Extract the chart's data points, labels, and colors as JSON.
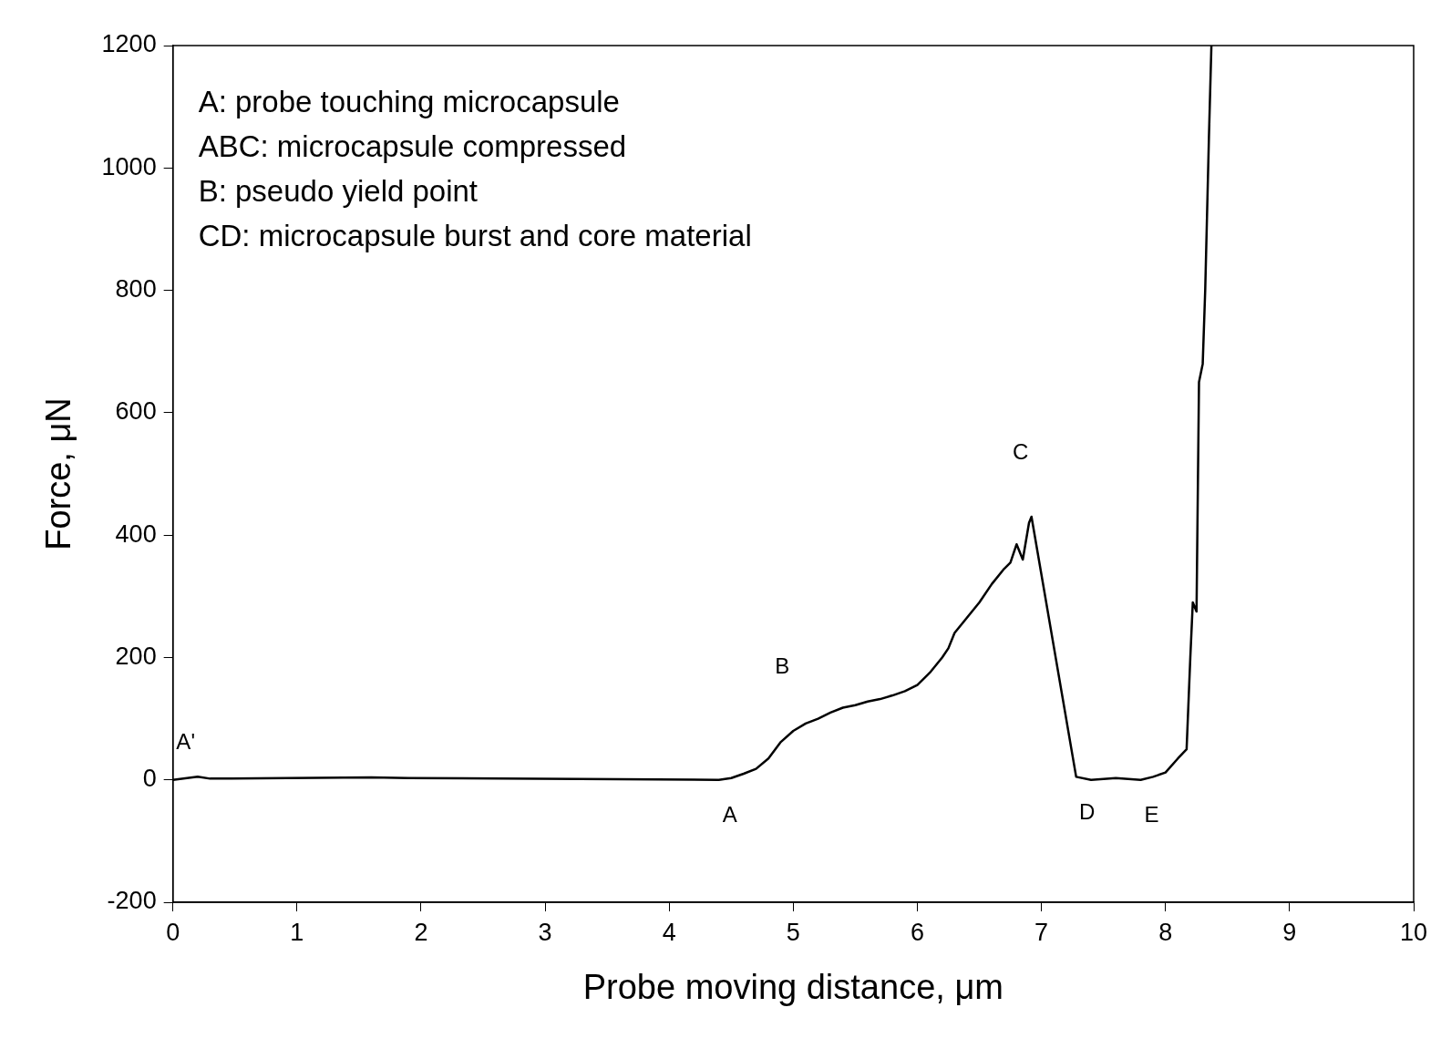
{
  "chart_data": {
    "type": "line",
    "xlabel": "Probe moving distance, μm",
    "ylabel": "Force, μN",
    "xlim": [
      0,
      10
    ],
    "xticks": [
      0,
      1,
      2,
      3,
      4,
      5,
      6,
      7,
      8,
      9,
      10
    ],
    "ylim": [
      -200,
      1200
    ],
    "yticks": [
      -200,
      0,
      200,
      400,
      600,
      800,
      1000,
      1200
    ],
    "grid": false,
    "legend": false,
    "marker": "none",
    "line_style": "solid",
    "series": [
      {
        "color": "#000000",
        "x": [
          0,
          0.2,
          0.3,
          1.6,
          1.9,
          4.4,
          4.5,
          4.6,
          4.7,
          4.8,
          4.9,
          5.0,
          5.1,
          5.2,
          5.3,
          5.4,
          5.5,
          5.6,
          5.7,
          5.8,
          5.9,
          6.0,
          6.1,
          6.2,
          6.25,
          6.3,
          6.4,
          6.5,
          6.6,
          6.7,
          6.75,
          6.8,
          6.85,
          6.9,
          6.92,
          7.28,
          7.4,
          7.6,
          7.8,
          7.9,
          8.0,
          8.1,
          8.17,
          8.2,
          8.22,
          8.25,
          8.27,
          8.3,
          8.32,
          8.35,
          8.37
        ],
        "values": [
          0,
          5,
          2,
          4,
          3,
          0,
          3,
          10,
          18,
          35,
          62,
          80,
          92,
          100,
          110,
          118,
          122,
          128,
          132,
          138,
          145,
          155,
          175,
          200,
          215,
          240,
          265,
          290,
          320,
          345,
          355,
          385,
          360,
          420,
          430,
          5,
          0,
          3,
          0,
          5,
          12,
          35,
          50,
          200,
          290,
          275,
          650,
          680,
          800,
          1050,
          1200
        ]
      }
    ],
    "annotations": [
      "A: probe touching microcapsule",
      "ABC: microcapsule compressed",
      "B: pseudo yield point",
      "CD: microcapsule burst and core material",
      {
        "text": "A'",
        "x": 0,
        "y": 0
      },
      {
        "text": "A",
        "x": 4.4,
        "y": 0
      },
      {
        "text": "B",
        "x": 5.0,
        "y": 80
      },
      {
        "text": "C",
        "x": 6.92,
        "y": 430
      },
      {
        "text": "D",
        "x": 7.28,
        "y": 5
      },
      {
        "text": "E",
        "x": 7.8,
        "y": 0
      }
    ]
  }
}
